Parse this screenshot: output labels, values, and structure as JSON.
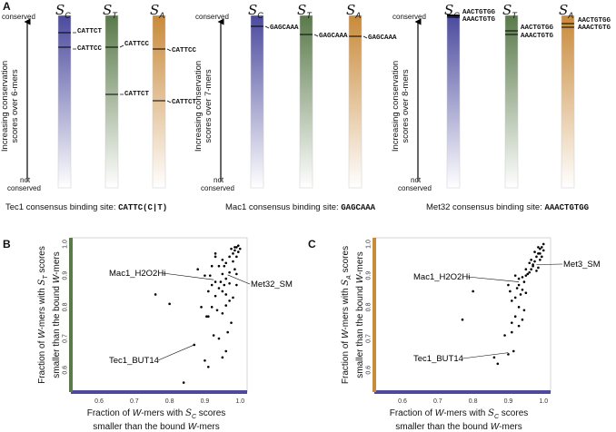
{
  "panel_letters": {
    "a": "A",
    "b": "B",
    "c": "C"
  },
  "column_headers": [
    "S_C",
    "S_T",
    "S_A"
  ],
  "header_glyphs": {
    "S": "S",
    "C": "C",
    "T": "T",
    "A": "A"
  },
  "axis_a": {
    "top": "conserved",
    "bottom_line1": "not",
    "bottom_line2": "conserved",
    "ylabel_1": "Increasing conservation",
    "ylabel_2_6": "scores over 6-mers",
    "ylabel_2_7": "scores over 7-mers",
    "ylabel_2_8": "scores over 8-mers"
  },
  "groups": [
    {
      "caption_prefix": "Tec1 consensus binding site: ",
      "caption_seq": "CATTC(C|T)",
      "kmers": {
        "k1": "CATTCT",
        "k2": "CATTCC"
      }
    },
    {
      "caption_prefix": "Mac1 consensus binding site: ",
      "caption_seq": "GAGCAAA",
      "kmers": {
        "k1": "GAGCAAA"
      }
    },
    {
      "caption_prefix": "Met32 consensus binding site: ",
      "caption_seq": "AAACTGTGG",
      "kmers": {
        "k1": "AACTGTGG",
        "k2": "AAACTGTG"
      }
    }
  ],
  "colors": {
    "c_bar": "#4b4a9e",
    "t_bar": "#5a7a4a",
    "a_bar": "#c98a3a",
    "scatter_b_xaxis": "#4b4a9e",
    "scatter_b_yaxis": "#5a7a4a",
    "scatter_c_xaxis": "#4b4a9e",
    "scatter_c_yaxis": "#c98a3a"
  },
  "chart_data": [
    {
      "type": "scatter",
      "panel": "B",
      "xlabel_1": "Fraction of ",
      "xlabel_W": "W",
      "xlabel_2": "-mers with ",
      "xlabel_S": "S",
      "xlabel_sub": "C",
      "xlabel_3": " scores",
      "xlabel_line2_a": "smaller than the bound ",
      "xlabel_line2_W": "W",
      "xlabel_line2_b": "-mers",
      "ylabel_line1_a": "Fraction of ",
      "ylabel_line1_W": "W",
      "ylabel_line1_b": "-mers with ",
      "ylabel_line1_S": "S",
      "ylabel_line1_sub": "T",
      "ylabel_line1_c": " scores",
      "ylabel_line2_a": "smaller than the bound ",
      "ylabel_line2_W": "W",
      "ylabel_line2_b": "-mers",
      "xlim": [
        0.52,
        1.02
      ],
      "ylim": [
        0.53,
        1.02
      ],
      "xticks": [
        "0.6",
        "0.7",
        "0.8",
        "0.9",
        "1.0"
      ],
      "yticks": [
        "0.6",
        "0.7",
        "0.8",
        "0.9",
        "1.0"
      ],
      "annotations": [
        {
          "text": "Mac1_H2O2Hi",
          "x": 0.925,
          "y": 0.887
        },
        {
          "text": "Met32_SM",
          "x": 0.965,
          "y": 0.902
        },
        {
          "text": "Tec1_BUT14",
          "x": 0.87,
          "y": 0.68
        }
      ],
      "points": [
        [
          0.99,
          0.99
        ],
        [
          0.985,
          0.98
        ],
        [
          0.995,
          0.995
        ],
        [
          0.98,
          0.97
        ],
        [
          0.99,
          0.96
        ],
        [
          1.0,
          0.985
        ],
        [
          0.995,
          0.975
        ],
        [
          0.985,
          0.99
        ],
        [
          0.975,
          0.985
        ],
        [
          0.97,
          0.96
        ],
        [
          0.95,
          0.95
        ],
        [
          0.96,
          0.94
        ],
        [
          0.94,
          0.93
        ],
        [
          0.93,
          0.97
        ],
        [
          0.95,
          0.905
        ],
        [
          0.96,
          0.89
        ],
        [
          0.97,
          0.91
        ],
        [
          0.955,
          0.87
        ],
        [
          0.93,
          0.88
        ],
        [
          0.92,
          0.87
        ],
        [
          0.94,
          0.86
        ],
        [
          0.95,
          0.85
        ],
        [
          0.96,
          0.84
        ],
        [
          0.97,
          0.82
        ],
        [
          0.93,
          0.835
        ],
        [
          0.91,
          0.85
        ],
        [
          0.92,
          0.8
        ],
        [
          0.935,
          0.79
        ],
        [
          0.95,
          0.78
        ],
        [
          0.96,
          0.805
        ],
        [
          0.98,
          0.83
        ],
        [
          0.99,
          0.87
        ],
        [
          0.975,
          0.75
        ],
        [
          0.965,
          0.72
        ],
        [
          0.94,
          0.7
        ],
        [
          0.925,
          0.71
        ],
        [
          0.91,
          0.77
        ],
        [
          0.905,
          0.77
        ],
        [
          0.89,
          0.8
        ],
        [
          0.9,
          0.9
        ],
        [
          0.92,
          0.93
        ],
        [
          0.88,
          0.92
        ],
        [
          0.96,
          0.66
        ],
        [
          0.95,
          0.64
        ],
        [
          0.9,
          0.63
        ],
        [
          0.91,
          0.61
        ],
        [
          0.84,
          0.56
        ],
        [
          0.8,
          0.81
        ],
        [
          0.76,
          0.84
        ],
        [
          0.87,
          0.68
        ],
        [
          0.93,
          0.96
        ],
        [
          0.97,
          0.875
        ],
        [
          0.985,
          0.92
        ],
        [
          0.945,
          0.88
        ],
        [
          0.915,
          0.9
        ],
        [
          0.99,
          0.905
        ],
        [
          0.98,
          0.945
        ],
        [
          0.955,
          0.93
        ]
      ]
    },
    {
      "type": "scatter",
      "panel": "C",
      "xlabel_1": "Fraction of ",
      "xlabel_W": "W",
      "xlabel_2": "-mers with ",
      "xlabel_S": "S",
      "xlabel_sub": "C",
      "xlabel_3": " scores",
      "xlabel_line2_a": "smaller than the bound ",
      "xlabel_line2_W": "W",
      "xlabel_line2_b": "-mers",
      "ylabel_line1_a": "Fraction of ",
      "ylabel_line1_W": "W",
      "ylabel_line1_b": "-mers with ",
      "ylabel_line1_S": "S",
      "ylabel_line1_sub": "A",
      "ylabel_line1_c": " scores",
      "ylabel_line2_a": "smaller than the bound ",
      "ylabel_line2_W": "W",
      "ylabel_line2_b": "-mers",
      "xlim": [
        0.52,
        1.02
      ],
      "ylim": [
        0.53,
        1.02
      ],
      "xticks": [
        "0.6",
        "0.7",
        "0.8",
        "0.9",
        "1.0"
      ],
      "yticks": [
        "0.6",
        "0.7",
        "0.8",
        "0.9",
        "1.0"
      ],
      "annotations": [
        {
          "text": "Mac1_H2O2Hi",
          "x": 0.93,
          "y": 0.88
        },
        {
          "text": "Met3_SM",
          "x": 0.98,
          "y": 0.935
        },
        {
          "text": "Tec1_BUT14",
          "x": 0.9,
          "y": 0.655
        }
      ],
      "points": [
        [
          1.0,
          1.0
        ],
        [
          0.995,
          0.99
        ],
        [
          0.99,
          0.985
        ],
        [
          1.0,
          0.98
        ],
        [
          0.985,
          0.97
        ],
        [
          0.98,
          0.96
        ],
        [
          0.99,
          0.95
        ],
        [
          0.975,
          0.945
        ],
        [
          0.97,
          0.93
        ],
        [
          0.965,
          0.92
        ],
        [
          0.96,
          0.91
        ],
        [
          0.955,
          0.905
        ],
        [
          0.95,
          0.9
        ],
        [
          0.94,
          0.895
        ],
        [
          0.93,
          0.89
        ],
        [
          0.92,
          0.9
        ],
        [
          0.93,
          0.87
        ],
        [
          0.925,
          0.86
        ],
        [
          0.94,
          0.855
        ],
        [
          0.95,
          0.845
        ],
        [
          0.935,
          0.84
        ],
        [
          0.92,
          0.83
        ],
        [
          0.905,
          0.85
        ],
        [
          0.9,
          0.87
        ],
        [
          0.91,
          0.82
        ],
        [
          0.93,
          0.8
        ],
        [
          0.945,
          0.79
        ],
        [
          0.92,
          0.77
        ],
        [
          0.94,
          0.76
        ],
        [
          0.91,
          0.75
        ],
        [
          0.93,
          0.74
        ],
        [
          0.91,
          0.72
        ],
        [
          0.89,
          0.71
        ],
        [
          0.915,
          0.66
        ],
        [
          0.9,
          0.65
        ],
        [
          0.87,
          0.62
        ],
        [
          0.86,
          0.64
        ],
        [
          0.8,
          0.85
        ],
        [
          0.77,
          0.76
        ],
        [
          0.985,
          0.925
        ],
        [
          0.97,
          0.935
        ],
        [
          0.96,
          0.94
        ],
        [
          0.995,
          0.96
        ],
        [
          0.98,
          0.915
        ],
        [
          0.95,
          0.92
        ],
        [
          0.99,
          0.97
        ],
        [
          0.985,
          0.99
        ],
        [
          0.975,
          0.975
        ],
        [
          0.965,
          0.95
        ],
        [
          0.945,
          0.88
        ]
      ]
    }
  ]
}
